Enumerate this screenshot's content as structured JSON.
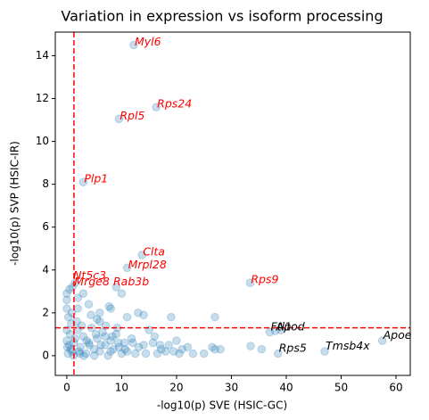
{
  "chart_data": {
    "type": "scatter",
    "title": "Variation in expression vs isoform processing",
    "x_label": "-log10(p) SVE (HSIC-GC)",
    "y_label": "-log10(p) SVP (HSIC-IR)",
    "xlim": [
      -2.1,
      62.6
    ],
    "ylim": [
      -0.92,
      15.1
    ],
    "xticks": [
      0,
      10,
      20,
      30,
      40,
      50,
      60
    ],
    "yticks": [
      0,
      2,
      4,
      6,
      8,
      10,
      12,
      14
    ],
    "series": [
      {
        "color": "#1f77b4",
        "alpha": 0.25,
        "x": [
          12.2,
          16.3,
          9.5,
          3.0,
          13.7,
          11.0,
          33.4,
          1.5,
          9.0,
          0.0,
          0.0,
          0.5,
          1.0,
          2.0,
          3.0,
          4.0,
          2.0,
          6.0,
          8.0,
          10.0,
          11.0,
          13.0,
          14.0,
          19.0,
          22.0,
          23.0,
          25.0,
          27.0,
          27.0,
          26.5,
          33.5,
          35.5,
          37.0,
          38.0,
          39.0,
          38.5,
          47.0,
          57.5,
          20.0,
          17.0,
          16.0,
          18.0,
          21.0,
          15.0,
          12.0,
          0.2,
          0.4,
          0.6,
          0.8,
          1.0,
          1.5,
          2.0,
          2.5,
          3.0,
          3.5,
          4.0,
          4.5,
          5.0,
          5.5,
          6.0,
          6.5,
          7.0,
          7.5,
          8.0,
          8.5,
          9.0,
          9.5,
          10.0,
          10.5,
          11.0,
          0.3,
          0.9,
          1.8,
          2.7,
          3.6,
          4.4,
          5.3,
          6.2,
          7.1,
          8.3,
          9.4,
          10.6,
          11.8,
          13.1,
          14.4,
          15.7,
          17.2,
          18.6,
          0.1,
          0.7,
          1.3,
          2.2,
          3.1,
          4.1,
          5.0,
          6.0,
          7.0,
          8.0,
          9.2,
          12.5,
          14.0,
          19.5,
          20.5,
          0.0,
          0.0,
          0.0,
          1.2,
          2.4,
          5.5,
          7.7,
          16.5,
          28.0
        ],
        "y": [
          14.5,
          11.6,
          11.05,
          8.1,
          4.7,
          4.1,
          3.4,
          3.4,
          3.2,
          2.6,
          2.9,
          3.1,
          3.2,
          2.7,
          2.9,
          2.4,
          2.2,
          2.0,
          2.2,
          2.9,
          1.8,
          2.0,
          1.9,
          1.8,
          0.4,
          0.1,
          0.1,
          0.3,
          1.8,
          0.4,
          0.45,
          0.3,
          1.1,
          1.15,
          1.2,
          0.1,
          0.2,
          0.7,
          0.7,
          0.5,
          0.9,
          0.2,
          0.3,
          1.2,
          0.6,
          0.1,
          0.5,
          1.0,
          1.5,
          0.2,
          0.8,
          1.2,
          0.4,
          0.9,
          0.1,
          0.6,
          1.3,
          0.3,
          0.8,
          0.2,
          1.1,
          0.5,
          0.0,
          0.7,
          0.3,
          1.0,
          0.4,
          0.1,
          0.6,
          0.2,
          1.8,
          2.0,
          1.6,
          1.4,
          0.7,
          1.9,
          1.0,
          0.5,
          1.4,
          0.9,
          0.6,
          0.3,
          0.8,
          0.4,
          0.1,
          0.6,
          0.3,
          0.5,
          0.4,
          0.3,
          0.6,
          0.2,
          0.0,
          0.5,
          0.0,
          1.6,
          0.9,
          0.2,
          1.3,
          0.1,
          0.5,
          0.2,
          0.1,
          1.2,
          0.7,
          2.2,
          0.0,
          0.1,
          1.7,
          2.3,
          0.1,
          0.3
        ]
      }
    ],
    "vline": 1.3,
    "hline": 1.3,
    "threshold_color": "#ff0000",
    "annotations": [
      {
        "text": "Myl6",
        "x": 12.2,
        "y": 14.5,
        "color": "#ff0000"
      },
      {
        "text": "Rps24",
        "x": 16.3,
        "y": 11.6,
        "color": "#ff0000"
      },
      {
        "text": "Rpl5",
        "x": 9.5,
        "y": 11.05,
        "color": "#ff0000"
      },
      {
        "text": "Plp1",
        "x": 3.0,
        "y": 8.1,
        "color": "#ff0000"
      },
      {
        "text": "Clta",
        "x": 13.7,
        "y": 4.7,
        "color": "#ff0000"
      },
      {
        "text": "Mrpl28",
        "x": 11.0,
        "y": 4.1,
        "color": "#ff0000"
      },
      {
        "text": "Rps9",
        "x": 33.4,
        "y": 3.4,
        "color": "#ff0000"
      },
      {
        "text": "Nt5c3",
        "x": 1.0,
        "y": 3.6,
        "color": "#ff0000"
      },
      {
        "text": "Mrge8",
        "x": 1.2,
        "y": 3.3,
        "color": "#ff0000"
      },
      {
        "text": "Rab3b",
        "x": 8.3,
        "y": 3.3,
        "color": "#ff0000"
      },
      {
        "text": "Ftl1",
        "x": 37.0,
        "y": 1.2,
        "color": "#000000"
      },
      {
        "text": "Apod",
        "x": 38.0,
        "y": 1.2,
        "color": "#000000"
      },
      {
        "text": "Rps5",
        "x": 38.5,
        "y": 0.2,
        "color": "#000000"
      },
      {
        "text": "Tmsb4x",
        "x": 47.0,
        "y": 0.3,
        "color": "#000000"
      },
      {
        "text": "Apoe",
        "x": 57.5,
        "y": 0.8,
        "color": "#000000"
      }
    ]
  }
}
